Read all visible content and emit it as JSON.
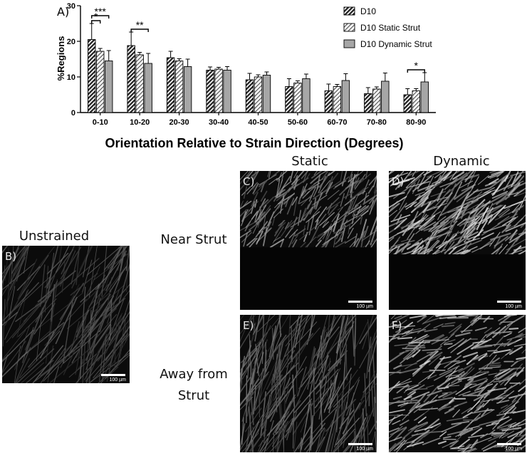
{
  "figure": {
    "panel_a_label": "A)",
    "column_static": "Static",
    "column_dynamic": "Dynamic",
    "row_near": "Near Strut",
    "row_away_line1": "Away from",
    "row_away_line2": "Strut",
    "unstrained_title": "Unstrained",
    "scale_bar_label": "100 µm",
    "panels": {
      "B": {
        "letter": "B)"
      },
      "C": {
        "letter": "C)"
      },
      "D": {
        "letter": "D)"
      },
      "E": {
        "letter": "E)"
      },
      "F": {
        "letter": "F)"
      }
    }
  },
  "chart_data": {
    "type": "bar",
    "xlabel": "Orientation Relative to Strain Direction (Degrees)",
    "ylabel": "%Regions",
    "ylim": [
      0,
      30
    ],
    "yticks": [
      0,
      10,
      20,
      30
    ],
    "grid": false,
    "legend_position": "top-right",
    "categories": [
      "0-10",
      "10-20",
      "20-30",
      "30-40",
      "40-50",
      "50-60",
      "60-70",
      "70-80",
      "80-90"
    ],
    "series": [
      {
        "name": "D10",
        "pattern": "hatch-dense",
        "values": [
          20.5,
          18.8,
          15.4,
          11.9,
          9.2,
          7.3,
          6.1,
          5.3,
          5.0
        ],
        "errors": [
          4.5,
          3.8,
          1.8,
          0.9,
          1.8,
          2.2,
          1.9,
          1.7,
          1.7
        ]
      },
      {
        "name": "D10 Static Strut",
        "pattern": "hatch-light",
        "values": [
          17.2,
          16.2,
          14.5,
          12.2,
          10.0,
          8.3,
          7.3,
          6.6,
          6.1
        ],
        "errors": [
          0.8,
          0.7,
          0.6,
          0.5,
          0.6,
          0.6,
          0.6,
          0.6,
          0.6
        ]
      },
      {
        "name": "D10 Dynamic Strut",
        "pattern": "solid-gray",
        "values": [
          14.5,
          13.8,
          12.9,
          11.9,
          10.5,
          9.5,
          9.0,
          8.8,
          8.6
        ],
        "errors": [
          2.9,
          2.8,
          2.1,
          1.0,
          0.9,
          1.3,
          1.9,
          2.3,
          2.6
        ]
      }
    ],
    "annotations": [
      {
        "text": "*",
        "category": "0-10",
        "from_series": 0,
        "to_series": 1
      },
      {
        "text": "***",
        "category": "0-10",
        "from_series": 0,
        "to_series": 2
      },
      {
        "text": "**",
        "category": "10-20",
        "from_series": 0,
        "to_series": 2
      },
      {
        "text": "*",
        "category": "80-90",
        "from_series": 0,
        "to_series": 2
      }
    ],
    "colors": {
      "bar_fill": "#a6a6a6",
      "bar_stroke": "#000000",
      "hatch_dense": "#222222",
      "hatch_light": "#555555"
    }
  }
}
